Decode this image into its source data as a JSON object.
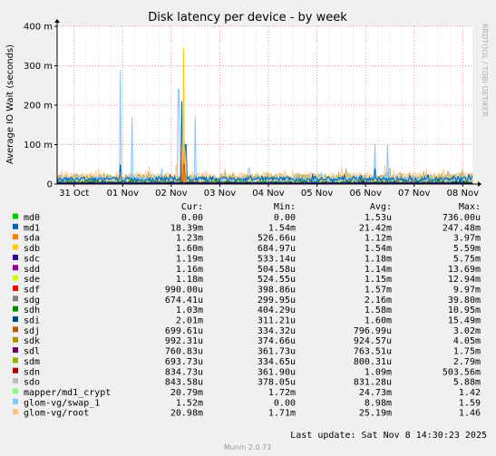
{
  "chart_data": {
    "type": "line",
    "title": "Disk latency per device - by week",
    "ylabel": "Average IO Wait (seconds)",
    "xlabel": "",
    "ylim": [
      0,
      0.4
    ],
    "y_ticks": [
      {
        "value": 0,
        "label": "0"
      },
      {
        "value": 0.1,
        "label": "100 m"
      },
      {
        "value": 0.2,
        "label": "200 m"
      },
      {
        "value": 0.3,
        "label": "300 m"
      },
      {
        "value": 0.4,
        "label": "400 m"
      }
    ],
    "x_ticks": [
      {
        "value": 0,
        "label": "31 Oct"
      },
      {
        "value": 1,
        "label": "01 Nov"
      },
      {
        "value": 2,
        "label": "02 Nov"
      },
      {
        "value": 3,
        "label": "03 Nov"
      },
      {
        "value": 4,
        "label": "04 Nov"
      },
      {
        "value": 5,
        "label": "05 Nov"
      },
      {
        "value": 6,
        "label": "06 Nov"
      },
      {
        "value": 7,
        "label": "07 Nov"
      },
      {
        "value": 8,
        "label": "08 Nov"
      }
    ],
    "xlim": [
      -0.35,
      8.2
    ],
    "grid": true,
    "series": [
      {
        "name": "glom-vg/root",
        "color": "#ffcc99",
        "kind": "band",
        "base": 0.022,
        "jitter": 0.008,
        "spikes": [
          [
            -0.25,
            0.035
          ],
          [
            0.5,
            0.04
          ],
          [
            1.55,
            0.045
          ],
          [
            2.1,
            0.05
          ],
          [
            3.1,
            0.04
          ],
          [
            4.5,
            0.035
          ],
          [
            5.5,
            0.045
          ],
          [
            6.4,
            0.05
          ],
          [
            7.6,
            0.04
          ]
        ]
      },
      {
        "name": "mapper/md1_crypt",
        "color": "#b5b567",
        "kind": "band",
        "base": 0.018,
        "jitter": 0.007,
        "spikes": [
          [
            2.25,
            0.06
          ],
          [
            5.6,
            0.04
          ],
          [
            6.5,
            0.04
          ],
          [
            7.7,
            0.035
          ]
        ]
      },
      {
        "name": "glom-vg/swap_1",
        "color": "#87c4ff",
        "kind": "line",
        "base": 0.012,
        "jitter": 0.006,
        "spikes": [
          [
            0.95,
            0.29
          ],
          [
            1.2,
            0.17
          ],
          [
            2.15,
            0.24
          ],
          [
            2.5,
            0.17
          ],
          [
            6.2,
            0.1
          ],
          [
            6.45,
            0.1
          ],
          [
            1.8,
            0.04
          ],
          [
            3.6,
            0.04
          ],
          [
            5.1,
            0.03
          ]
        ]
      },
      {
        "name": "md1",
        "color": "#0066b3",
        "kind": "line",
        "base": 0.012,
        "jitter": 0.006,
        "spikes": [
          [
            2.22,
            0.21
          ],
          [
            2.3,
            0.1
          ],
          [
            0.95,
            0.05
          ],
          [
            6.2,
            0.04
          ]
        ]
      },
      {
        "name": "sda",
        "color": "#ff8000",
        "kind": "line",
        "base": 0.002,
        "jitter": 0.001,
        "spikes": [
          [
            2.27,
            0.11
          ],
          [
            2.24,
            0.13
          ]
        ]
      },
      {
        "name": "sdb",
        "color": "#ffcc00",
        "kind": "line",
        "base": 0.002,
        "jitter": 0.001,
        "spikes": [
          [
            2.25,
            0.345
          ]
        ]
      },
      {
        "name": "sdn",
        "color": "#b35a00",
        "kind": "line",
        "base": 0.002,
        "jitter": 0.001,
        "spikes": [
          [
            2.26,
            0.05
          ]
        ]
      },
      {
        "name": "sdd",
        "color": "#990099",
        "kind": "line",
        "base": 0.002,
        "jitter": 0.001,
        "spikes": []
      },
      {
        "name": "sdh",
        "color": "#008f00",
        "kind": "line",
        "base": 0.004,
        "jitter": 0.003,
        "spikes": [
          [
            7.5,
            0.012
          ]
        ]
      },
      {
        "name": "sdi",
        "color": "#00487d",
        "kind": "line",
        "base": 0.003,
        "jitter": 0.002,
        "spikes": []
      },
      {
        "name": "sdl",
        "color": "#330000",
        "kind": "line",
        "base": 0.002,
        "jitter": 0.001,
        "spikes": []
      },
      {
        "name": "sdc",
        "color": "#330099",
        "kind": "line",
        "base": 0.0015,
        "jitter": 0.001,
        "spikes": []
      }
    ],
    "legend": {
      "placement": "bottom",
      "columns": [
        "Cur:",
        "Min:",
        "Avg:",
        "Max:"
      ],
      "rows": [
        {
          "name": "md0",
          "color": "#00cc00",
          "cur": "0.00",
          "min": "0.00",
          "avg": "1.53u",
          "max": "736.00u"
        },
        {
          "name": "md1",
          "color": "#0066b3",
          "cur": "18.39m",
          "min": "1.54m",
          "avg": "21.42m",
          "max": "247.48m"
        },
        {
          "name": "sda",
          "color": "#ff8000",
          "cur": "1.23m",
          "min": "526.66u",
          "avg": "1.12m",
          "max": "3.97m"
        },
        {
          "name": "sdb",
          "color": "#ffcc00",
          "cur": "1.60m",
          "min": "684.97u",
          "avg": "1.54m",
          "max": "5.59m"
        },
        {
          "name": "sdc",
          "color": "#330099",
          "cur": "1.19m",
          "min": "533.14u",
          "avg": "1.18m",
          "max": "5.75m"
        },
        {
          "name": "sdd",
          "color": "#990099",
          "cur": "1.16m",
          "min": "504.58u",
          "avg": "1.14m",
          "max": "13.69m"
        },
        {
          "name": "sde",
          "color": "#ccff00",
          "cur": "1.18m",
          "min": "524.55u",
          "avg": "1.15m",
          "max": "12.94m"
        },
        {
          "name": "sdf",
          "color": "#ff0000",
          "cur": "990.00u",
          "min": "398.86u",
          "avg": "1.57m",
          "max": "9.97m"
        },
        {
          "name": "sdg",
          "color": "#808080",
          "cur": "674.41u",
          "min": "299.95u",
          "avg": "2.16m",
          "max": "39.80m"
        },
        {
          "name": "sdh",
          "color": "#008f00",
          "cur": "1.03m",
          "min": "404.29u",
          "avg": "1.58m",
          "max": "10.95m"
        },
        {
          "name": "sdi",
          "color": "#00487d",
          "cur": "2.01m",
          "min": "311.21u",
          "avg": "1.60m",
          "max": "15.49m"
        },
        {
          "name": "sdj",
          "color": "#b35a00",
          "cur": "699.61u",
          "min": "334.32u",
          "avg": "796.99u",
          "max": "3.02m"
        },
        {
          "name": "sdk",
          "color": "#b38f00",
          "cur": "992.31u",
          "min": "374.66u",
          "avg": "924.57u",
          "max": "4.05m"
        },
        {
          "name": "sdl",
          "color": "#6b006b",
          "cur": "760.83u",
          "min": "361.73u",
          "avg": "763.51u",
          "max": "1.75m"
        },
        {
          "name": "sdm",
          "color": "#8fb300",
          "cur": "693.73u",
          "min": "334.65u",
          "avg": "800.31u",
          "max": "2.79m"
        },
        {
          "name": "sdn",
          "color": "#b30000",
          "cur": "834.73u",
          "min": "361.90u",
          "avg": "1.09m",
          "max": "503.56m"
        },
        {
          "name": "sdo",
          "color": "#bebebe",
          "cur": "843.58u",
          "min": "378.05u",
          "avg": "831.28u",
          "max": "5.88m"
        },
        {
          "name": "mapper/md1_crypt",
          "color": "#80ff80",
          "cur": "20.79m",
          "min": "1.72m",
          "avg": "24.73m",
          "max": "1.42"
        },
        {
          "name": "glom-vg/swap_1",
          "color": "#80c9ff",
          "cur": "1.52m",
          "min": "0.00",
          "avg": "8.98m",
          "max": "1.59"
        },
        {
          "name": "glom-vg/root",
          "color": "#ffc080",
          "cur": "20.98m",
          "min": "1.71m",
          "avg": "25.19m",
          "max": "1.46"
        }
      ]
    }
  },
  "last_update": "Last update: Sat Nov  8 14:30:23 2025",
  "side_text": "RRDTOOL / TOBI OETIKER",
  "footer": "Munin 2.0.73"
}
